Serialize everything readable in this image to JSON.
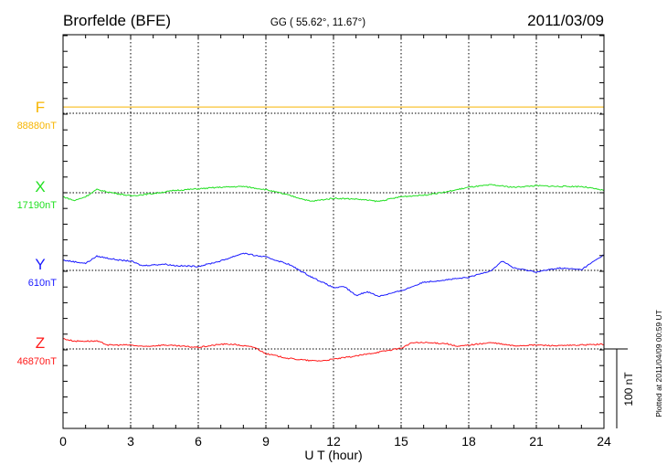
{
  "chart_data": {
    "type": "line",
    "title": "Brorfelde (BFE)",
    "subtitle": "GG ( 55.62°,  11.67°)",
    "date": "2011/03/09",
    "xlabel": "U T (hour)",
    "xlim": [
      0,
      24
    ],
    "xticks": [
      "0",
      "3",
      "6",
      "9",
      "12",
      "15",
      "18",
      "21",
      "24"
    ],
    "scale_label": "100 nT",
    "scale_nT": 100,
    "footer": "Plotted at 2011/04/09 00:59 UT",
    "grid": true,
    "series": [
      {
        "name": "F",
        "baseline_label": "88880nT",
        "color": "#f7b500",
        "x": [
          0,
          24
        ],
        "values": [
          8,
          8
        ]
      },
      {
        "name": "X",
        "baseline_label": "17190nT",
        "color": "#22e022",
        "x": [
          0,
          0.5,
          1,
          1.5,
          2,
          3,
          4,
          5,
          6,
          7,
          8,
          9,
          10,
          11,
          12,
          13,
          14,
          15,
          16,
          17,
          18,
          19,
          20,
          21,
          22,
          23,
          24
        ],
        "values": [
          -5,
          -10,
          -5,
          4,
          1,
          -4,
          -1,
          3,
          5,
          7,
          8,
          4,
          -3,
          -11,
          -7,
          -8,
          -11,
          -5,
          -3,
          1,
          7,
          10,
          7,
          9,
          8,
          8,
          3
        ]
      },
      {
        "name": "Y",
        "baseline_label": "610nT",
        "color": "#1a1aff",
        "x": [
          0,
          1,
          1.5,
          2.5,
          3,
          3.5,
          4.5,
          5,
          6,
          7,
          8,
          8.5,
          9,
          10,
          11,
          12,
          12.5,
          13,
          13.5,
          14,
          15,
          16,
          17,
          18,
          19,
          19.5,
          20,
          21,
          22,
          23,
          24
        ],
        "values": [
          13,
          9,
          18,
          13,
          12,
          6,
          8,
          6,
          5,
          12,
          22,
          19,
          17,
          8,
          -8,
          -22,
          -21,
          -32,
          -27,
          -33,
          -26,
          -15,
          -12,
          -9,
          0,
          12,
          3,
          -2,
          3,
          1,
          20
        ]
      },
      {
        "name": "Z",
        "baseline_label": "46870nT",
        "color": "#ff1a1a",
        "x": [
          0,
          0.5,
          1.5,
          2,
          3,
          3.5,
          4.5,
          5.5,
          6,
          7,
          7.5,
          8.5,
          9,
          10,
          11,
          11.5,
          12,
          13,
          14,
          15,
          15.5,
          16,
          17,
          17.5,
          18,
          19,
          20,
          21,
          22,
          23,
          24
        ],
        "values": [
          13,
          10,
          10,
          5,
          5,
          3,
          5,
          3,
          2,
          6,
          6,
          2,
          -6,
          -12,
          -15,
          -15,
          -13,
          -9,
          -4,
          1,
          8,
          8,
          7,
          3,
          5,
          8,
          4,
          5,
          4,
          5,
          6
        ]
      }
    ]
  }
}
